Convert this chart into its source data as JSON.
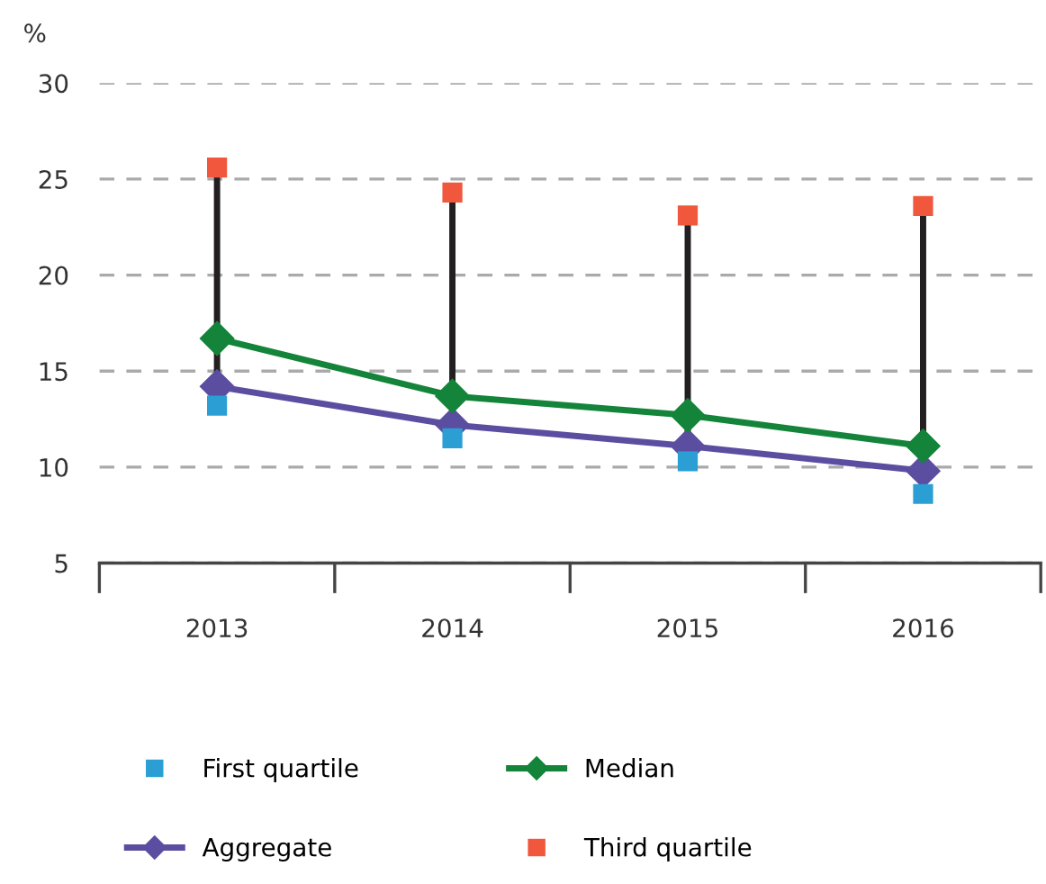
{
  "chart_data": {
    "type": "line",
    "ylabel": "%",
    "categories": [
      "2013",
      "2014",
      "2015",
      "2016"
    ],
    "series": [
      {
        "name": "First quartile",
        "type": "scatter",
        "marker": "square",
        "color": "#2b9fd4",
        "values": [
          13.2,
          11.5,
          10.3,
          8.6
        ]
      },
      {
        "name": "Aggregate",
        "type": "line",
        "marker": "diamond",
        "color": "#5b4ea0",
        "values": [
          14.2,
          12.2,
          11.1,
          9.8
        ]
      },
      {
        "name": "Median",
        "type": "line",
        "marker": "diamond",
        "color": "#14843a",
        "values": [
          16.7,
          13.7,
          12.7,
          11.1
        ]
      },
      {
        "name": "Third quartile",
        "type": "scatter",
        "marker": "square",
        "color": "#f0573c",
        "values": [
          25.6,
          24.3,
          23.1,
          23.6
        ]
      }
    ],
    "ylim": [
      5,
      30
    ],
    "yticks": [
      5,
      10,
      15,
      20,
      25,
      30
    ],
    "grid": "y",
    "legend": "bottom",
    "line_style": "solid"
  }
}
